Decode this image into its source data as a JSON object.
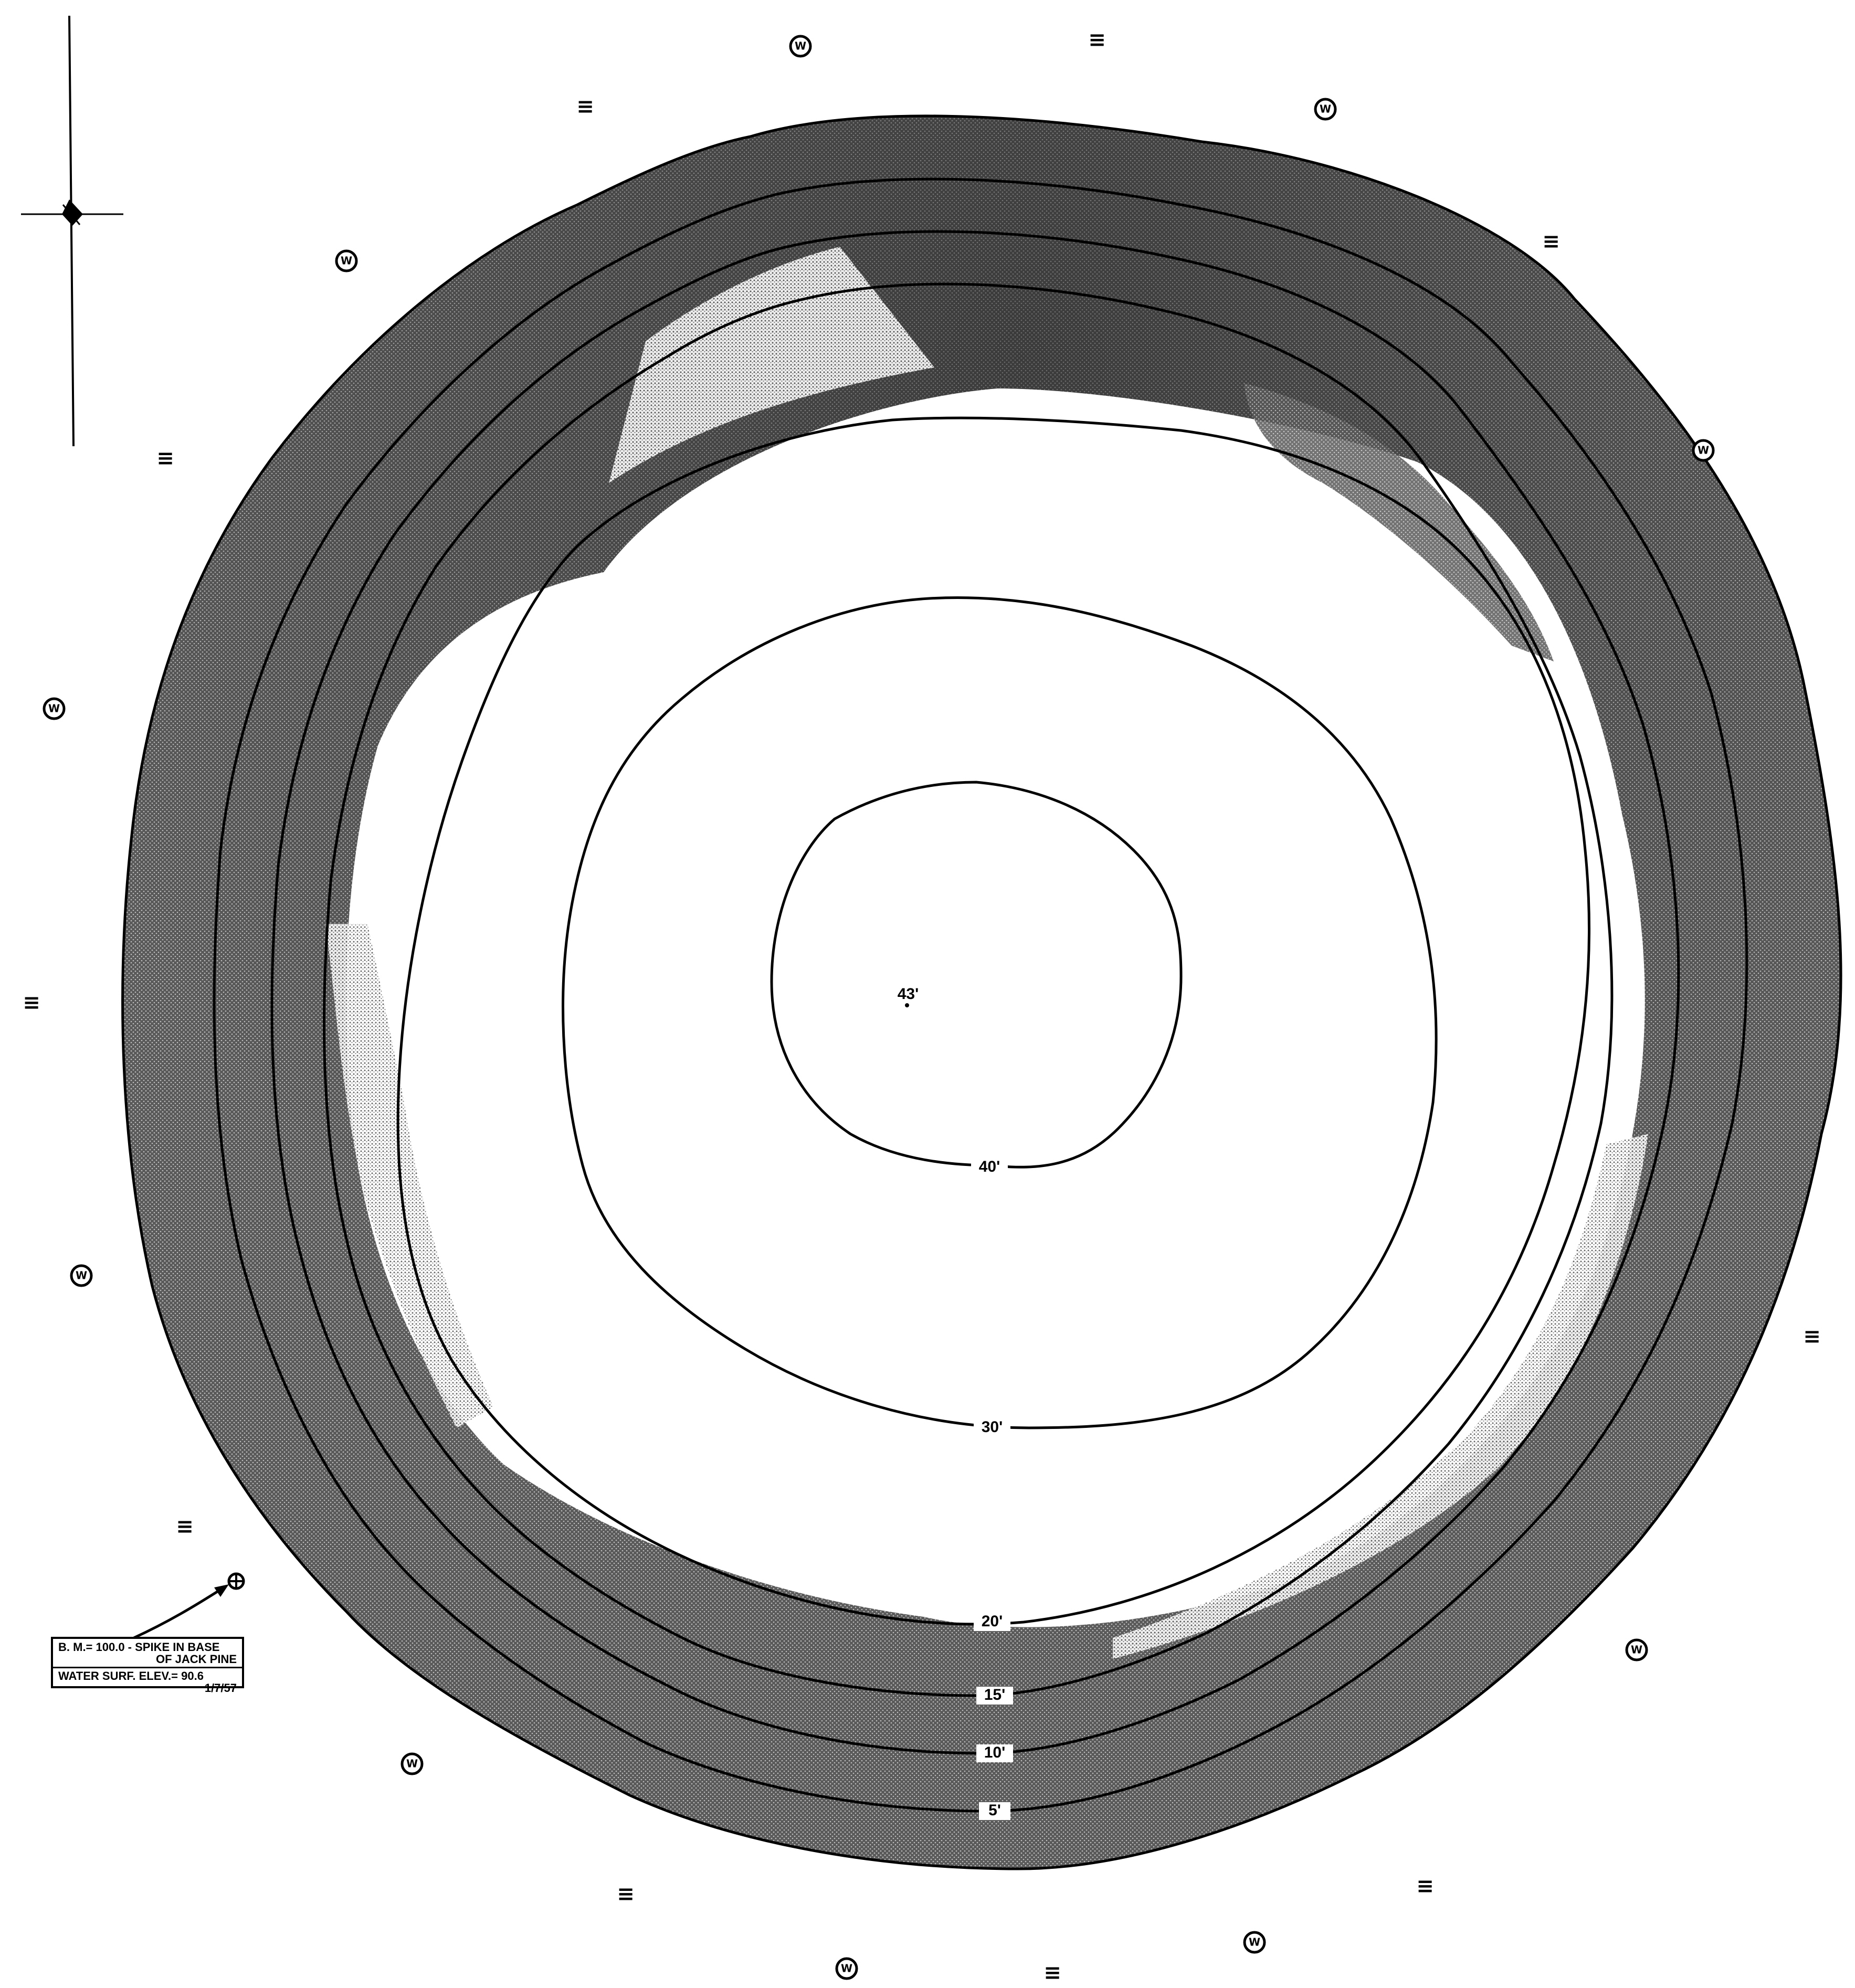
{
  "map": {
    "center_label": "43'",
    "contours": [
      {
        "depth_label": "40'"
      },
      {
        "depth_label": "30'"
      },
      {
        "depth_label": "20'"
      },
      {
        "depth_label": "15'"
      },
      {
        "depth_label": "10'"
      },
      {
        "depth_label": "5'"
      }
    ],
    "marsh_symbol": "≡",
    "wooded_symbol": "W",
    "legend": {
      "line1": "B. M.= 100.0 - SPIKE IN BASE",
      "line2": "OF JACK PINE",
      "line3": "WATER SURF. ELEV.= 90.6",
      "line4": "1/7/57"
    },
    "icons": [
      "north-arrow-icon",
      "benchmark-icon",
      "wooded-symbol-icon",
      "marsh-symbol-icon"
    ],
    "colors": {
      "ink": "#000000",
      "paper": "#ffffff",
      "shading_dark": "#3a3a3a",
      "shading_mid": "#6e6e6e"
    }
  }
}
